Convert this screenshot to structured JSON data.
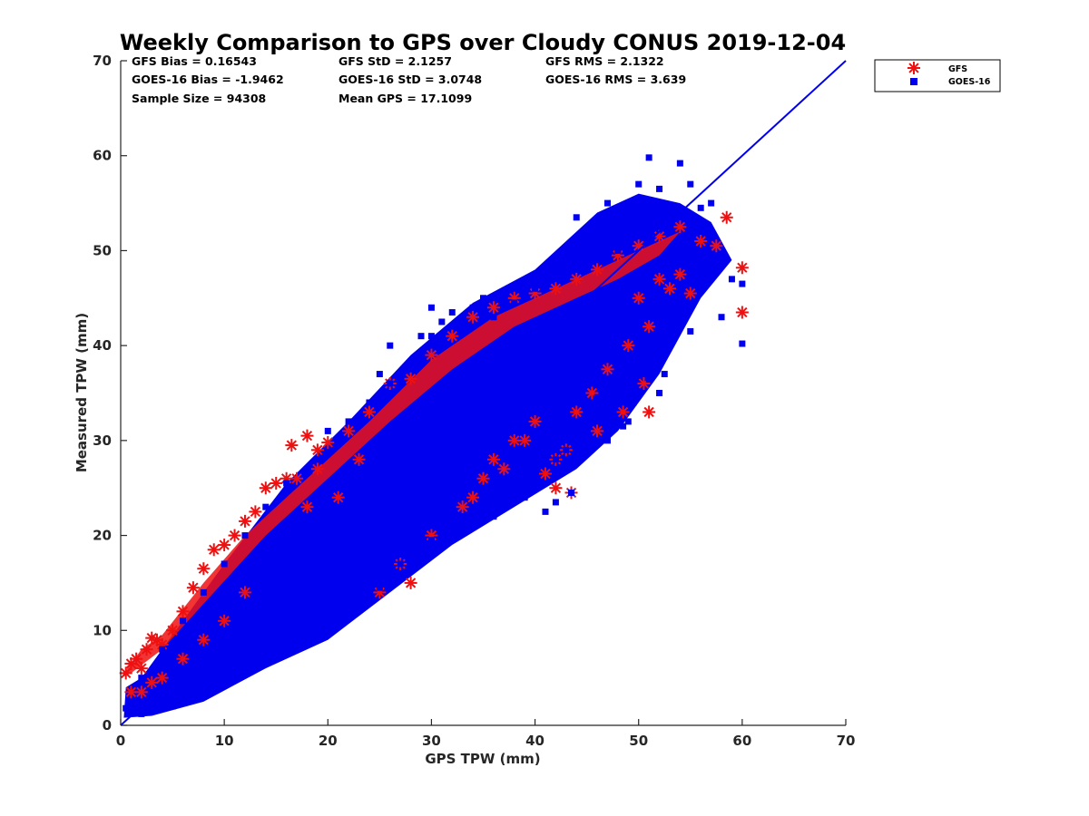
{
  "chart_data": {
    "type": "scatter",
    "title": "Weekly Comparison to GPS over Cloudy CONUS 2019-12-04",
    "xlabel": "GPS TPW (mm)",
    "ylabel": "Measured TPW (mm)",
    "xlim": [
      0,
      70
    ],
    "ylim": [
      0,
      70
    ],
    "xticks": [
      "0",
      "10",
      "20",
      "30",
      "40",
      "50",
      "60",
      "70"
    ],
    "yticks": [
      "0",
      "10",
      "20",
      "30",
      "40",
      "50",
      "60",
      "70"
    ],
    "grid": false,
    "legend_position": "outside-top-right",
    "stats": [
      [
        "GFS Bias = 0.16543",
        "GFS StD = 2.1257",
        "GFS RMS = 2.1322"
      ],
      [
        "GOES-16 Bias = -1.9462",
        "GOES-16 StD = 3.0748",
        "GOES-16 RMS = 3.639"
      ],
      [
        "Sample Size = 94308",
        "Mean GPS = 17.1099",
        ""
      ]
    ],
    "reference_line": {
      "x": [
        0,
        70
      ],
      "y": [
        0,
        70
      ],
      "color": "#0000ee"
    },
    "series": [
      {
        "name": "GFS",
        "marker": "asterisk",
        "color": "#ee1111",
        "points": [
          [
            0.5,
            5.5
          ],
          [
            1,
            6.5
          ],
          [
            1.5,
            7
          ],
          [
            2,
            6
          ],
          [
            2.5,
            8
          ],
          [
            3,
            9.2
          ],
          [
            3.5,
            9
          ],
          [
            4,
            8.5
          ],
          [
            5,
            10
          ],
          [
            6,
            12
          ],
          [
            7,
            14.5
          ],
          [
            8,
            16.5
          ],
          [
            9,
            18.5
          ],
          [
            10,
            19
          ],
          [
            11,
            20
          ],
          [
            12,
            21.5
          ],
          [
            13,
            22.5
          ],
          [
            14,
            25
          ],
          [
            15,
            25.5
          ],
          [
            16,
            26
          ],
          [
            16.5,
            29.5
          ],
          [
            18,
            30.5
          ],
          [
            19,
            29
          ],
          [
            20,
            29.8
          ],
          [
            22,
            31
          ],
          [
            24,
            33
          ],
          [
            26,
            36
          ],
          [
            28,
            36.5
          ],
          [
            30,
            39
          ],
          [
            32,
            41
          ],
          [
            34,
            43
          ],
          [
            36,
            44
          ],
          [
            38,
            45
          ],
          [
            40,
            45.5
          ],
          [
            42,
            46
          ],
          [
            44,
            47
          ],
          [
            46,
            48
          ],
          [
            48,
            49.5
          ],
          [
            50,
            50.5
          ],
          [
            52,
            51.5
          ],
          [
            54,
            52.5
          ],
          [
            56,
            51
          ],
          [
            57.5,
            50.5
          ],
          [
            58.5,
            53.5
          ],
          [
            60,
            48.2
          ],
          [
            60,
            43.5
          ],
          [
            51,
            33
          ],
          [
            50.5,
            36
          ],
          [
            49,
            40
          ],
          [
            45.5,
            35
          ],
          [
            44,
            33
          ],
          [
            43,
            29
          ],
          [
            42,
            28
          ],
          [
            41,
            26.5
          ],
          [
            42,
            25
          ],
          [
            43.5,
            24.5
          ],
          [
            48.5,
            33
          ],
          [
            47,
            37.5
          ],
          [
            46,
            31
          ],
          [
            40,
            32
          ],
          [
            38,
            30
          ],
          [
            36,
            28
          ],
          [
            35,
            26
          ],
          [
            34,
            24
          ],
          [
            28,
            15
          ],
          [
            27,
            17
          ],
          [
            25,
            14
          ],
          [
            30,
            20
          ],
          [
            33,
            23
          ],
          [
            37,
            27
          ],
          [
            39,
            30
          ],
          [
            18,
            23
          ],
          [
            17,
            26
          ],
          [
            19,
            27
          ],
          [
            21,
            24
          ],
          [
            23,
            28
          ],
          [
            12,
            14
          ],
          [
            10,
            11
          ],
          [
            8,
            9
          ],
          [
            6,
            7
          ],
          [
            4,
            5
          ],
          [
            3,
            4.5
          ],
          [
            2,
            3.5
          ],
          [
            1,
            3.5
          ],
          [
            52,
            47
          ],
          [
            54,
            47.5
          ],
          [
            55,
            45.5
          ],
          [
            53,
            46
          ],
          [
            51,
            42
          ],
          [
            50,
            45
          ]
        ]
      },
      {
        "name": "GOES-16",
        "marker": "square",
        "color": "#0000ee",
        "points": [
          [
            51,
            59.8
          ],
          [
            54,
            59.2
          ],
          [
            50,
            57
          ],
          [
            52,
            56.5
          ],
          [
            55,
            57
          ],
          [
            56,
            54.5
          ],
          [
            57,
            55
          ],
          [
            55,
            53
          ],
          [
            47,
            55
          ],
          [
            49,
            53
          ],
          [
            51,
            52.5
          ],
          [
            53,
            52
          ],
          [
            46,
            52
          ],
          [
            44,
            53.5
          ],
          [
            45,
            51.5
          ],
          [
            48,
            50
          ],
          [
            58,
            49.5
          ],
          [
            59,
            47
          ],
          [
            60,
            46.5
          ],
          [
            60,
            40.2
          ],
          [
            58,
            43
          ],
          [
            55,
            41.5
          ],
          [
            53,
            42
          ],
          [
            52.5,
            37
          ],
          [
            52,
            35
          ],
          [
            51,
            36.5
          ],
          [
            49.5,
            34
          ],
          [
            48.5,
            31.5
          ],
          [
            49,
            32
          ],
          [
            47,
            30
          ],
          [
            46,
            34.5
          ],
          [
            45,
            32
          ],
          [
            44,
            31
          ],
          [
            43,
            29
          ],
          [
            42,
            28
          ],
          [
            43.5,
            24.5
          ],
          [
            42,
            23.5
          ],
          [
            40,
            25.5
          ],
          [
            39,
            24
          ],
          [
            41,
            22.5
          ],
          [
            37,
            25
          ],
          [
            36,
            22
          ],
          [
            35,
            24
          ],
          [
            33,
            22
          ],
          [
            31,
            20
          ],
          [
            30,
            19.5
          ],
          [
            28,
            18.5
          ],
          [
            27,
            17
          ],
          [
            26,
            15.5
          ],
          [
            25,
            14.5
          ],
          [
            23,
            13.5
          ],
          [
            22,
            12.5
          ],
          [
            20,
            11.5
          ],
          [
            18,
            9
          ],
          [
            17,
            8.5
          ],
          [
            15,
            8
          ],
          [
            13,
            7
          ],
          [
            11,
            5
          ],
          [
            9,
            4
          ],
          [
            7,
            3
          ],
          [
            5,
            2
          ],
          [
            3,
            1.5
          ],
          [
            2,
            1.2
          ],
          [
            1,
            1.5
          ],
          [
            0.5,
            1.8
          ],
          [
            18,
            27
          ],
          [
            19,
            28
          ],
          [
            20,
            31
          ],
          [
            22,
            32
          ],
          [
            24,
            34
          ],
          [
            26,
            36
          ],
          [
            28,
            38
          ],
          [
            30,
            41
          ],
          [
            32,
            43.5
          ],
          [
            34,
            44
          ],
          [
            35,
            45
          ],
          [
            36,
            43
          ],
          [
            38,
            44.5
          ],
          [
            40,
            46
          ],
          [
            14,
            23
          ],
          [
            12,
            20
          ],
          [
            10,
            17
          ],
          [
            8,
            14
          ],
          [
            6,
            11
          ],
          [
            4,
            8
          ],
          [
            2,
            5
          ],
          [
            16,
            25.5
          ],
          [
            30,
            44
          ],
          [
            31,
            42.5
          ],
          [
            26,
            40
          ],
          [
            29,
            41
          ],
          [
            25,
            37
          ]
        ]
      }
    ]
  }
}
